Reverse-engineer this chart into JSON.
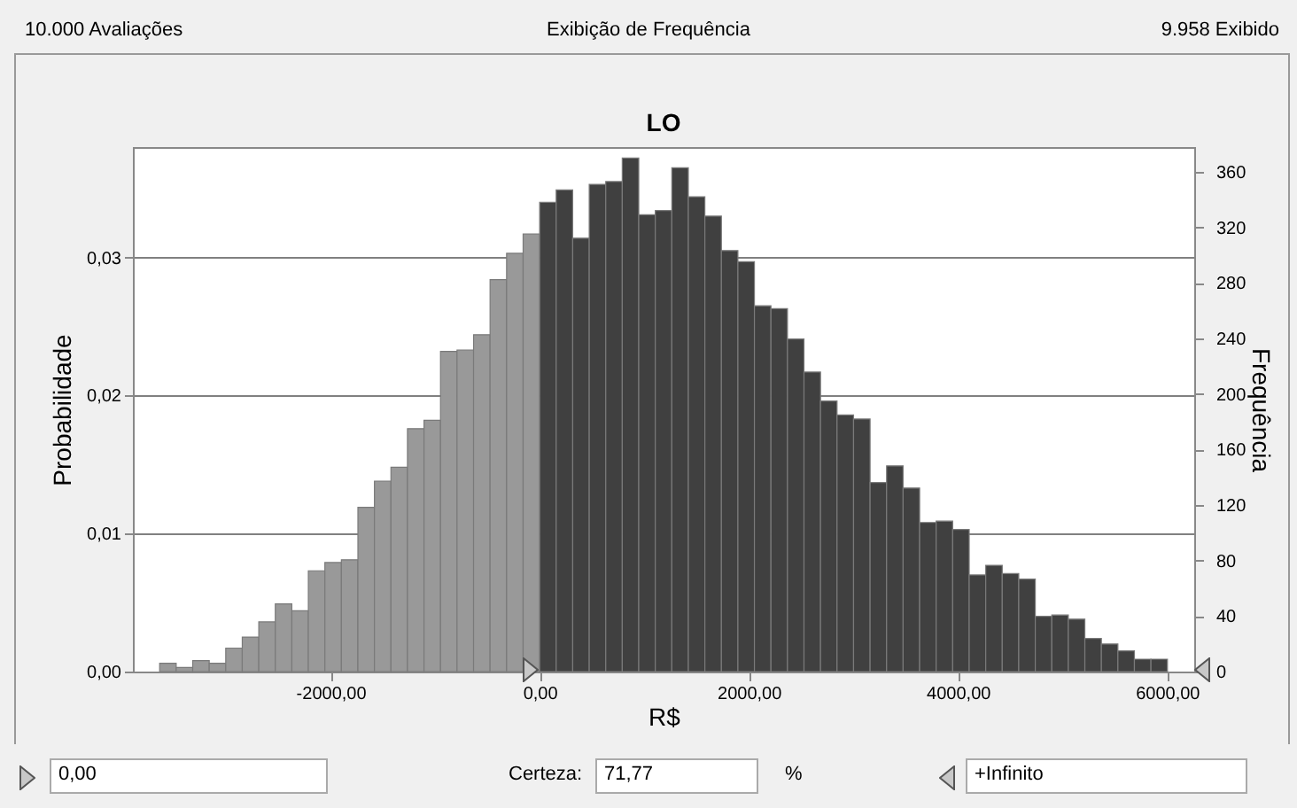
{
  "chart_data": {
    "type": "histogram",
    "title": "LO",
    "xlabel": "R$",
    "ylabel": "Probabilidade",
    "y2label": "Frequência",
    "annotations": [
      "10.000 Avaliações",
      "Exibição de Frequência",
      "9.958 Exibido",
      "0,00",
      "Certeza:",
      "71,77",
      "%",
      "+Infinito"
    ],
    "bins": [
      -3634,
      -3476,
      -3318,
      -3160,
      -3002,
      -2844,
      -2686,
      -2528,
      -2370,
      -2212,
      -2054,
      -1896,
      -1738,
      -1580,
      -1422,
      -1264,
      -1106,
      -948,
      -790,
      -632,
      -474,
      -316,
      -158,
      0,
      158,
      316,
      474,
      632,
      790,
      948,
      1106,
      1264,
      1422,
      1580,
      1738,
      1896,
      2054,
      2212,
      2370,
      2528,
      2686,
      2844,
      3002,
      3160,
      3318,
      3476,
      3634,
      3792,
      3950,
      4108,
      4266,
      4424,
      4582,
      4740,
      4898,
      5056,
      5214,
      5372,
      5530,
      5688,
      5846,
      6004
    ],
    "values": [
      0.0006,
      0.0003,
      0.0008,
      0.0006,
      0.0017,
      0.0025,
      0.0036,
      0.0049,
      0.0044,
      0.0073,
      0.0079,
      0.0081,
      0.0119,
      0.0138,
      0.0148,
      0.0176,
      0.0182,
      0.0232,
      0.0233,
      0.0244,
      0.0284,
      0.0303,
      0.0317,
      0.034,
      0.0349,
      0.0314,
      0.0353,
      0.0355,
      0.0372,
      0.0331,
      0.0334,
      0.0365,
      0.0344,
      0.033,
      0.0305,
      0.0297,
      0.0265,
      0.0263,
      0.0241,
      0.0217,
      0.0196,
      0.0186,
      0.0183,
      0.0137,
      0.0149,
      0.0133,
      0.0108,
      0.0109,
      0.0103,
      0.007,
      0.0077,
      0.0071,
      0.0067,
      0.004,
      0.0041,
      0.0038,
      0.0024,
      0.002,
      0.0015,
      0.0009,
      0.0009
    ],
    "colors": [
      "#999999",
      "#999999",
      "#999999",
      "#999999",
      "#999999",
      "#999999",
      "#999999",
      "#999999",
      "#999999",
      "#999999",
      "#999999",
      "#999999",
      "#999999",
      "#999999",
      "#999999",
      "#999999",
      "#999999",
      "#999999",
      "#999999",
      "#999999",
      "#999999",
      "#999999",
      "#999999",
      "#404040",
      "#404040",
      "#404040",
      "#404040",
      "#404040",
      "#404040",
      "#404040",
      "#404040",
      "#404040",
      "#404040",
      "#404040",
      "#404040",
      "#404040",
      "#404040",
      "#404040",
      "#404040",
      "#404040",
      "#404040",
      "#404040",
      "#404040",
      "#404040",
      "#404040",
      "#404040",
      "#404040",
      "#404040",
      "#404040",
      "#404040",
      "#404040",
      "#404040",
      "#404040",
      "#404040",
      "#404040",
      "#404040",
      "#404040",
      "#404040",
      "#404040",
      "#404040",
      "#404040"
    ],
    "xlim": [
      -3890,
      6260
    ],
    "xticks": [
      {
        "value": -2000,
        "label": "-2000,00"
      },
      {
        "value": 0,
        "label": "0,00"
      },
      {
        "value": 2000,
        "label": "2000,00"
      },
      {
        "value": 4000,
        "label": "4000,00"
      },
      {
        "value": 6000,
        "label": "6000,00"
      }
    ],
    "ylim": [
      0,
      0.038
    ],
    "yticks": [
      {
        "value": 0,
        "label": "0,00"
      },
      {
        "value": 0.01,
        "label": "0,01"
      },
      {
        "value": 0.02,
        "label": "0,02"
      },
      {
        "value": 0.03,
        "label": "0,03"
      }
    ],
    "y2lim": [
      0,
      378
    ],
    "y2ticks": [
      0,
      40,
      80,
      120,
      160,
      200,
      240,
      280,
      320,
      360
    ],
    "grid": "y"
  }
}
